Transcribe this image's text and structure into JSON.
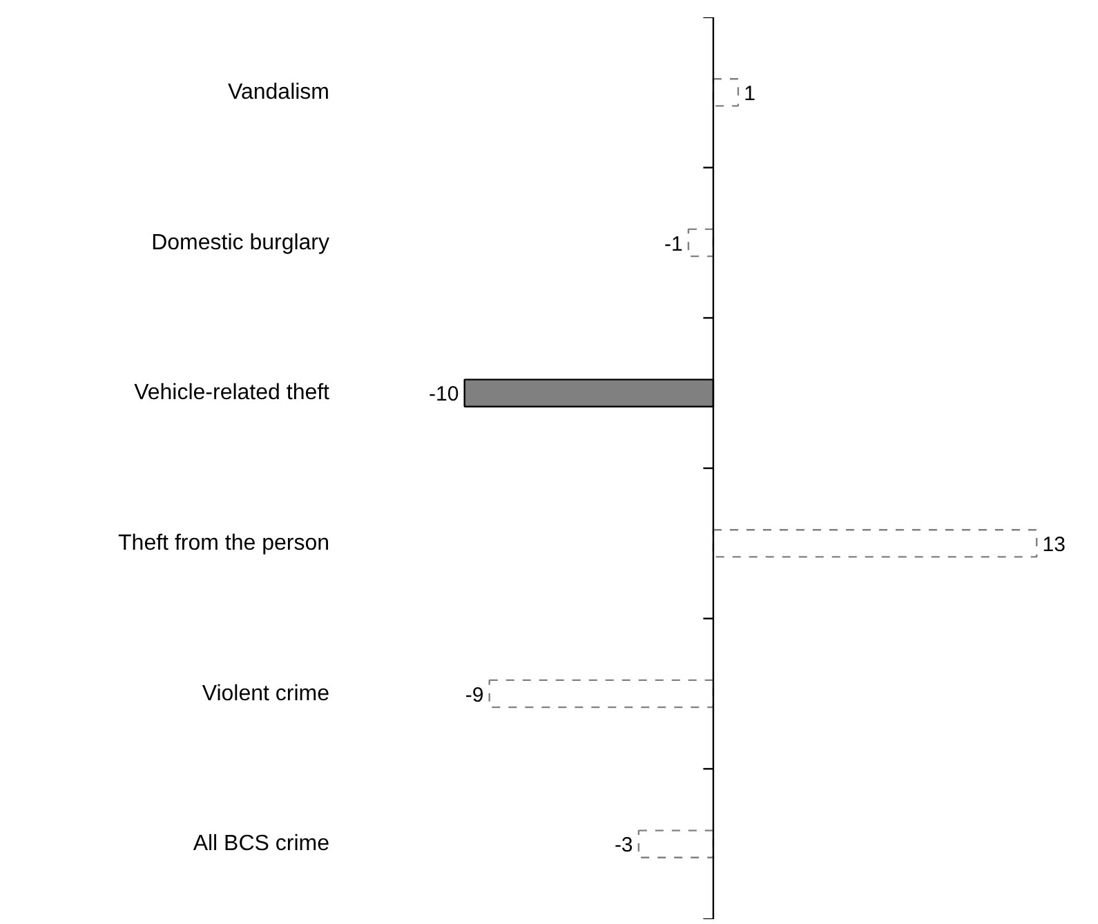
{
  "chart_data": {
    "type": "bar",
    "orientation": "horizontal",
    "categories": [
      "Vandalism",
      "Domestic burglary",
      "Vehicle-related theft",
      "Theft from the person",
      "Violent crime",
      "All BCS crime"
    ],
    "series": [
      {
        "color": "#808080",
        "line_style": "solid",
        "values": [
          null,
          null,
          -10,
          null,
          null,
          null
        ]
      },
      {
        "color": "#ffffff",
        "line_style": "dashed",
        "values": [
          1,
          -1,
          null,
          13,
          -9,
          -3
        ]
      }
    ],
    "data_labels": true
  }
}
